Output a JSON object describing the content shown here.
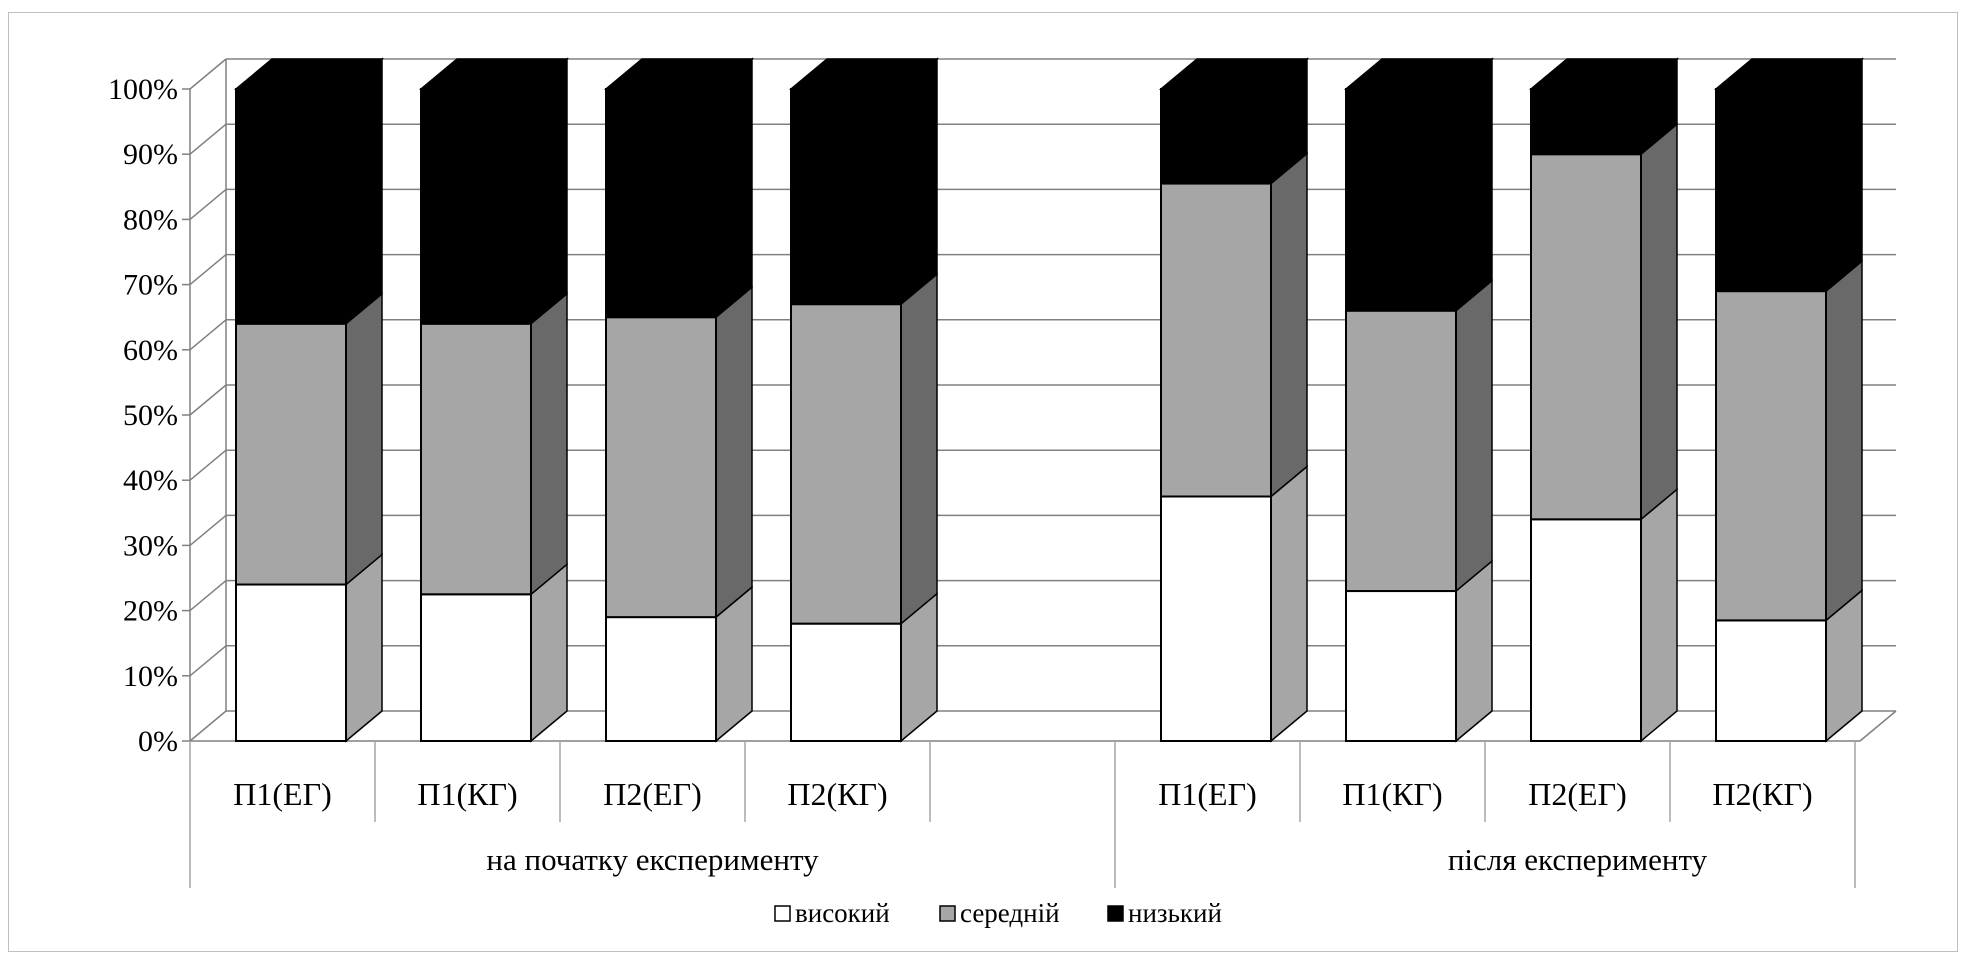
{
  "chart_data": {
    "type": "bar",
    "stacked": true,
    "percent_stacked": true,
    "three_d": true,
    "y_ticks": [
      "0%",
      "10%",
      "20%",
      "30%",
      "40%",
      "50%",
      "60%",
      "70%",
      "80%",
      "90%",
      "100%"
    ],
    "ylim": [
      0,
      100
    ],
    "grid": true,
    "legend_position": "bottom",
    "groups": [
      {
        "label": "на початку експерименту",
        "categories": [
          "П1(ЕГ)",
          "П1(КГ)",
          "П2(ЕГ)",
          "П2(КГ)"
        ]
      },
      {
        "label": "після експерименту",
        "categories": [
          "П1(ЕГ)",
          "П1(КГ)",
          "П2(ЕГ)",
          "П2(КГ)"
        ]
      }
    ],
    "series": [
      {
        "name": "високий",
        "color": "#ffffff",
        "side_color": "#a6a6a6",
        "values": [
          24,
          22.5,
          19,
          18,
          37.5,
          23,
          34,
          18.5
        ]
      },
      {
        "name": "середній",
        "color": "#a6a6a6",
        "side_color": "#696969",
        "values": [
          40,
          41.5,
          46,
          49,
          48,
          43,
          56,
          50.5
        ]
      },
      {
        "name": "низький",
        "color": "#000000",
        "side_color": "#000000",
        "values": [
          36,
          36,
          35,
          33,
          14.5,
          34,
          10,
          31
        ]
      }
    ]
  }
}
